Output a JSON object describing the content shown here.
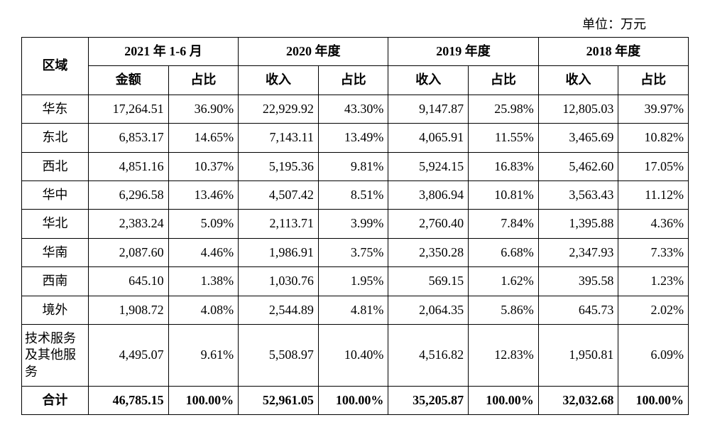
{
  "unit_label": "单位：万元",
  "header": {
    "region": "区域",
    "periods": [
      {
        "title": "2021 年 1-6 月",
        "amount_label": "金额",
        "pct_label": "占比"
      },
      {
        "title": "2020 年度",
        "amount_label": "收入",
        "pct_label": "占比"
      },
      {
        "title": "2019 年度",
        "amount_label": "收入",
        "pct_label": "占比"
      },
      {
        "title": "2018 年度",
        "amount_label": "收入",
        "pct_label": "占比"
      }
    ]
  },
  "rows": [
    {
      "region": "华东",
      "v": [
        "17,264.51",
        "36.90%",
        "22,929.92",
        "43.30%",
        "9,147.87",
        "25.98%",
        "12,805.03",
        "39.97%"
      ]
    },
    {
      "region": "东北",
      "v": [
        "6,853.17",
        "14.65%",
        "7,143.11",
        "13.49%",
        "4,065.91",
        "11.55%",
        "3,465.69",
        "10.82%"
      ]
    },
    {
      "region": "西北",
      "v": [
        "4,851.16",
        "10.37%",
        "5,195.36",
        "9.81%",
        "5,924.15",
        "16.83%",
        "5,462.60",
        "17.05%"
      ]
    },
    {
      "region": "华中",
      "v": [
        "6,296.58",
        "13.46%",
        "4,507.42",
        "8.51%",
        "3,806.94",
        "10.81%",
        "3,563.43",
        "11.12%"
      ]
    },
    {
      "region": "华北",
      "v": [
        "2,383.24",
        "5.09%",
        "2,113.71",
        "3.99%",
        "2,760.40",
        "7.84%",
        "1,395.88",
        "4.36%"
      ]
    },
    {
      "region": "华南",
      "v": [
        "2,087.60",
        "4.46%",
        "1,986.91",
        "3.75%",
        "2,350.28",
        "6.68%",
        "2,347.93",
        "7.33%"
      ]
    },
    {
      "region": "西南",
      "v": [
        "645.10",
        "1.38%",
        "1,030.76",
        "1.95%",
        "569.15",
        "1.62%",
        "395.58",
        "1.23%"
      ]
    },
    {
      "region": "境外",
      "v": [
        "1,908.72",
        "4.08%",
        "2,544.89",
        "4.81%",
        "2,064.35",
        "5.86%",
        "645.73",
        "2.02%"
      ]
    },
    {
      "region": "技术服务及其他服务",
      "multiline": true,
      "v": [
        "4,495.07",
        "9.61%",
        "5,508.97",
        "10.40%",
        "4,516.82",
        "12.83%",
        "1,950.81",
        "6.09%"
      ]
    }
  ],
  "total": {
    "label": "合计",
    "v": [
      "46,785.15",
      "100.00%",
      "52,961.05",
      "100.00%",
      "35,205.87",
      "100.00%",
      "32,032.68",
      "100.00%"
    ]
  },
  "colors": {
    "border": "#000000",
    "text": "#000000",
    "background": "#ffffff"
  }
}
